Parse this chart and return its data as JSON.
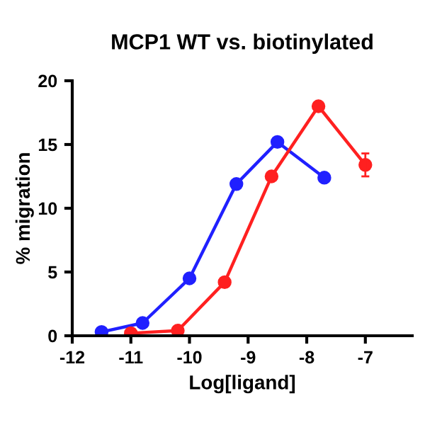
{
  "chart_data": {
    "type": "line",
    "title": "MCP1 WT vs. biotinylated",
    "xlabel": "Log[ligand]",
    "ylabel": "% migration",
    "xlim": [
      -12,
      -6.2
    ],
    "xticks": [
      -12,
      -11,
      -10,
      -9,
      -8,
      -7
    ],
    "ylim": [
      0,
      20
    ],
    "yticks": [
      0,
      5,
      10,
      15,
      20
    ],
    "marker": "circle",
    "grid": false,
    "legend": false,
    "series": [
      {
        "color": "#2020ff",
        "x": [
          -11.5,
          -10.8,
          -10,
          -9.2,
          -8.5,
          -7.7
        ],
        "values": [
          0.3,
          1.0,
          4.5,
          11.9,
          15.2,
          12.4
        ]
      },
      {
        "color": "#ff2020",
        "x": [
          -11,
          -10.2,
          -9.4,
          -8.6,
          -7.8,
          -7
        ],
        "values": [
          0.2,
          0.4,
          4.2,
          12.5,
          18.0,
          13.4
        ],
        "errors": [
          null,
          null,
          null,
          null,
          null,
          0.9
        ]
      }
    ]
  }
}
